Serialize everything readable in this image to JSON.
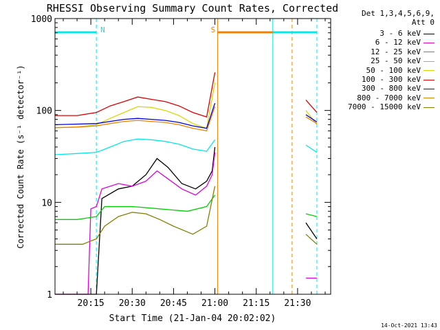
{
  "chart_data": {
    "type": "line",
    "title": "RHESSI Observing Summary Count Rates, Corrected",
    "xlabel": "Start Time (21-Jan-04 20:02:02)",
    "ylabel": "Corrected Count Rate (s⁻¹ detector⁻¹)",
    "y_scale": "log",
    "ylim": [
      1,
      1000
    ],
    "ytick_labels": [
      "1",
      "10",
      "100",
      "1000"
    ],
    "x_start": "20:02",
    "x_end": "21:42",
    "xtick_labels": [
      "20:15",
      "20:30",
      "20:45",
      "21:00",
      "21:15",
      "21:30"
    ],
    "detector_info": [
      "Det 1,3,4,5,6,9,",
      "Att 0"
    ],
    "footer": "14-Oct-2021 13:43",
    "series": [
      {
        "name": "3 - 6 keV",
        "color": "#000000",
        "points": [
          [
            "20:02",
            1.0
          ],
          [
            "20:17",
            1.0
          ],
          [
            "20:19",
            11
          ],
          [
            "20:25",
            14
          ],
          [
            "20:30",
            15
          ],
          [
            "20:35",
            20
          ],
          [
            "20:39",
            30
          ],
          [
            "20:43",
            24
          ],
          [
            "20:48",
            16
          ],
          [
            "20:53",
            14
          ],
          [
            "20:57",
            17
          ],
          [
            "20:59",
            22
          ],
          [
            "21:00",
            40
          ],
          [
            "21:33",
            null
          ],
          [
            "21:33",
            6.0
          ],
          [
            "21:37",
            4.0
          ]
        ]
      },
      {
        "name": "6 - 12 keV",
        "color": "#e000e0",
        "points": [
          [
            "20:02",
            1.0
          ],
          [
            "20:14",
            1.0
          ],
          [
            "20:15",
            8.5
          ],
          [
            "20:17",
            9
          ],
          [
            "20:19",
            14
          ],
          [
            "20:25",
            16
          ],
          [
            "20:30",
            15
          ],
          [
            "20:35",
            17
          ],
          [
            "20:39",
            22
          ],
          [
            "20:43",
            18
          ],
          [
            "20:48",
            14
          ],
          [
            "20:53",
            12
          ],
          [
            "20:57",
            15
          ],
          [
            "20:59",
            20
          ],
          [
            "21:00",
            35
          ],
          [
            "21:33",
            null
          ],
          [
            "21:33",
            1.5
          ],
          [
            "21:37",
            1.5
          ]
        ]
      },
      {
        "name": "12 - 25 keV",
        "color": "#00d000",
        "points": [
          [
            "20:02",
            6.5
          ],
          [
            "20:10",
            6.5
          ],
          [
            "20:17",
            7.0
          ],
          [
            "20:20",
            9
          ],
          [
            "20:30",
            9
          ],
          [
            "20:40",
            8.5
          ],
          [
            "20:50",
            8
          ],
          [
            "20:57",
            9
          ],
          [
            "21:00",
            12
          ],
          [
            "21:33",
            null
          ],
          [
            "21:33",
            7.5
          ],
          [
            "21:37",
            7.0
          ]
        ]
      },
      {
        "name": "25 - 50 keV",
        "color": "#00e8e8",
        "points": [
          [
            "20:02",
            33
          ],
          [
            "20:10",
            34
          ],
          [
            "20:17",
            35
          ],
          [
            "20:22",
            40
          ],
          [
            "20:27",
            46
          ],
          [
            "20:32",
            49
          ],
          [
            "20:37",
            48
          ],
          [
            "20:42",
            46
          ],
          [
            "20:47",
            43
          ],
          [
            "20:52",
            38
          ],
          [
            "20:57",
            36
          ],
          [
            "21:00",
            48
          ],
          [
            "21:33",
            null
          ],
          [
            "21:33",
            42
          ],
          [
            "21:37",
            35
          ]
        ]
      },
      {
        "name": "50 - 100 keV",
        "color": "#d8d800",
        "points": [
          [
            "20:02",
            65
          ],
          [
            "20:10",
            66
          ],
          [
            "20:17",
            70
          ],
          [
            "20:22",
            82
          ],
          [
            "20:27",
            95
          ],
          [
            "20:32",
            110
          ],
          [
            "20:37",
            108
          ],
          [
            "20:42",
            100
          ],
          [
            "20:47",
            88
          ],
          [
            "20:52",
            72
          ],
          [
            "20:57",
            64
          ],
          [
            "21:00",
            200
          ],
          [
            "21:33",
            null
          ],
          [
            "21:33",
            100
          ],
          [
            "21:37",
            70
          ]
        ]
      },
      {
        "name": "100 - 300 keV",
        "color": "#e00000",
        "points": [
          [
            "20:02",
            88
          ],
          [
            "20:10",
            88
          ],
          [
            "20:17",
            95
          ],
          [
            "20:22",
            112
          ],
          [
            "20:27",
            125
          ],
          [
            "20:32",
            140
          ],
          [
            "20:37",
            132
          ],
          [
            "20:42",
            125
          ],
          [
            "20:47",
            112
          ],
          [
            "20:52",
            95
          ],
          [
            "20:57",
            85
          ],
          [
            "21:00",
            260
          ],
          [
            "21:33",
            null
          ],
          [
            "21:33",
            130
          ],
          [
            "21:37",
            95
          ]
        ]
      },
      {
        "name": "300 - 800 keV",
        "color": "#0000e0",
        "points": [
          [
            "20:02",
            70
          ],
          [
            "20:10",
            71
          ],
          [
            "20:17",
            72
          ],
          [
            "20:22",
            76
          ],
          [
            "20:27",
            80
          ],
          [
            "20:32",
            82
          ],
          [
            "20:37",
            80
          ],
          [
            "20:42",
            78
          ],
          [
            "20:47",
            74
          ],
          [
            "20:52",
            68
          ],
          [
            "20:57",
            64
          ],
          [
            "21:00",
            120
          ],
          [
            "21:33",
            null
          ],
          [
            "21:33",
            90
          ],
          [
            "21:37",
            75
          ]
        ]
      },
      {
        "name": "800 - 7000 keV",
        "color": "#f08000",
        "points": [
          [
            "20:02",
            65
          ],
          [
            "20:10",
            66
          ],
          [
            "20:17",
            68
          ],
          [
            "20:22",
            72
          ],
          [
            "20:27",
            76
          ],
          [
            "20:32",
            78
          ],
          [
            "20:37",
            76
          ],
          [
            "20:42",
            74
          ],
          [
            "20:47",
            70
          ],
          [
            "20:52",
            64
          ],
          [
            "20:57",
            60
          ],
          [
            "21:00",
            110
          ],
          [
            "21:33",
            null
          ],
          [
            "21:33",
            85
          ],
          [
            "21:37",
            72
          ]
        ]
      },
      {
        "name": "7000 - 15000 keV",
        "color": "#808000",
        "points": [
          [
            "20:02",
            3.5
          ],
          [
            "20:12",
            3.5
          ],
          [
            "20:15",
            3.8
          ],
          [
            "20:17",
            4.0
          ],
          [
            "20:20",
            5.5
          ],
          [
            "20:25",
            7.0
          ],
          [
            "20:30",
            7.8
          ],
          [
            "20:35",
            7.5
          ],
          [
            "20:40",
            6.5
          ],
          [
            "20:45",
            5.5
          ],
          [
            "20:52",
            4.5
          ],
          [
            "20:57",
            5.5
          ],
          [
            "21:00",
            15
          ],
          [
            "21:33",
            null
          ],
          [
            "21:33",
            4.5
          ],
          [
            "21:37",
            3.5
          ]
        ]
      }
    ],
    "state_intervals": [
      {
        "label": "N",
        "color": "#00e8e8",
        "start": "20:02",
        "end": "20:17"
      },
      {
        "label": "S",
        "color": "#f08000",
        "start": "21:01",
        "end": "21:28"
      },
      {
        "label": "",
        "color": "#00e8e8",
        "start": "21:21",
        "end": "21:37"
      }
    ],
    "markers": [
      {
        "time": "20:02",
        "color": "#00e8e8",
        "style": "solid"
      },
      {
        "time": "20:17",
        "color": "#00e8e8",
        "style": "dashed"
      },
      {
        "time": "21:01",
        "color": "#f08000",
        "style": "solid"
      },
      {
        "time": "21:21",
        "color": "#00e8e8",
        "style": "solid"
      },
      {
        "time": "21:28",
        "color": "#f08000",
        "style": "dashed"
      },
      {
        "time": "21:37",
        "color": "#00e8e8",
        "style": "dashed"
      }
    ]
  }
}
